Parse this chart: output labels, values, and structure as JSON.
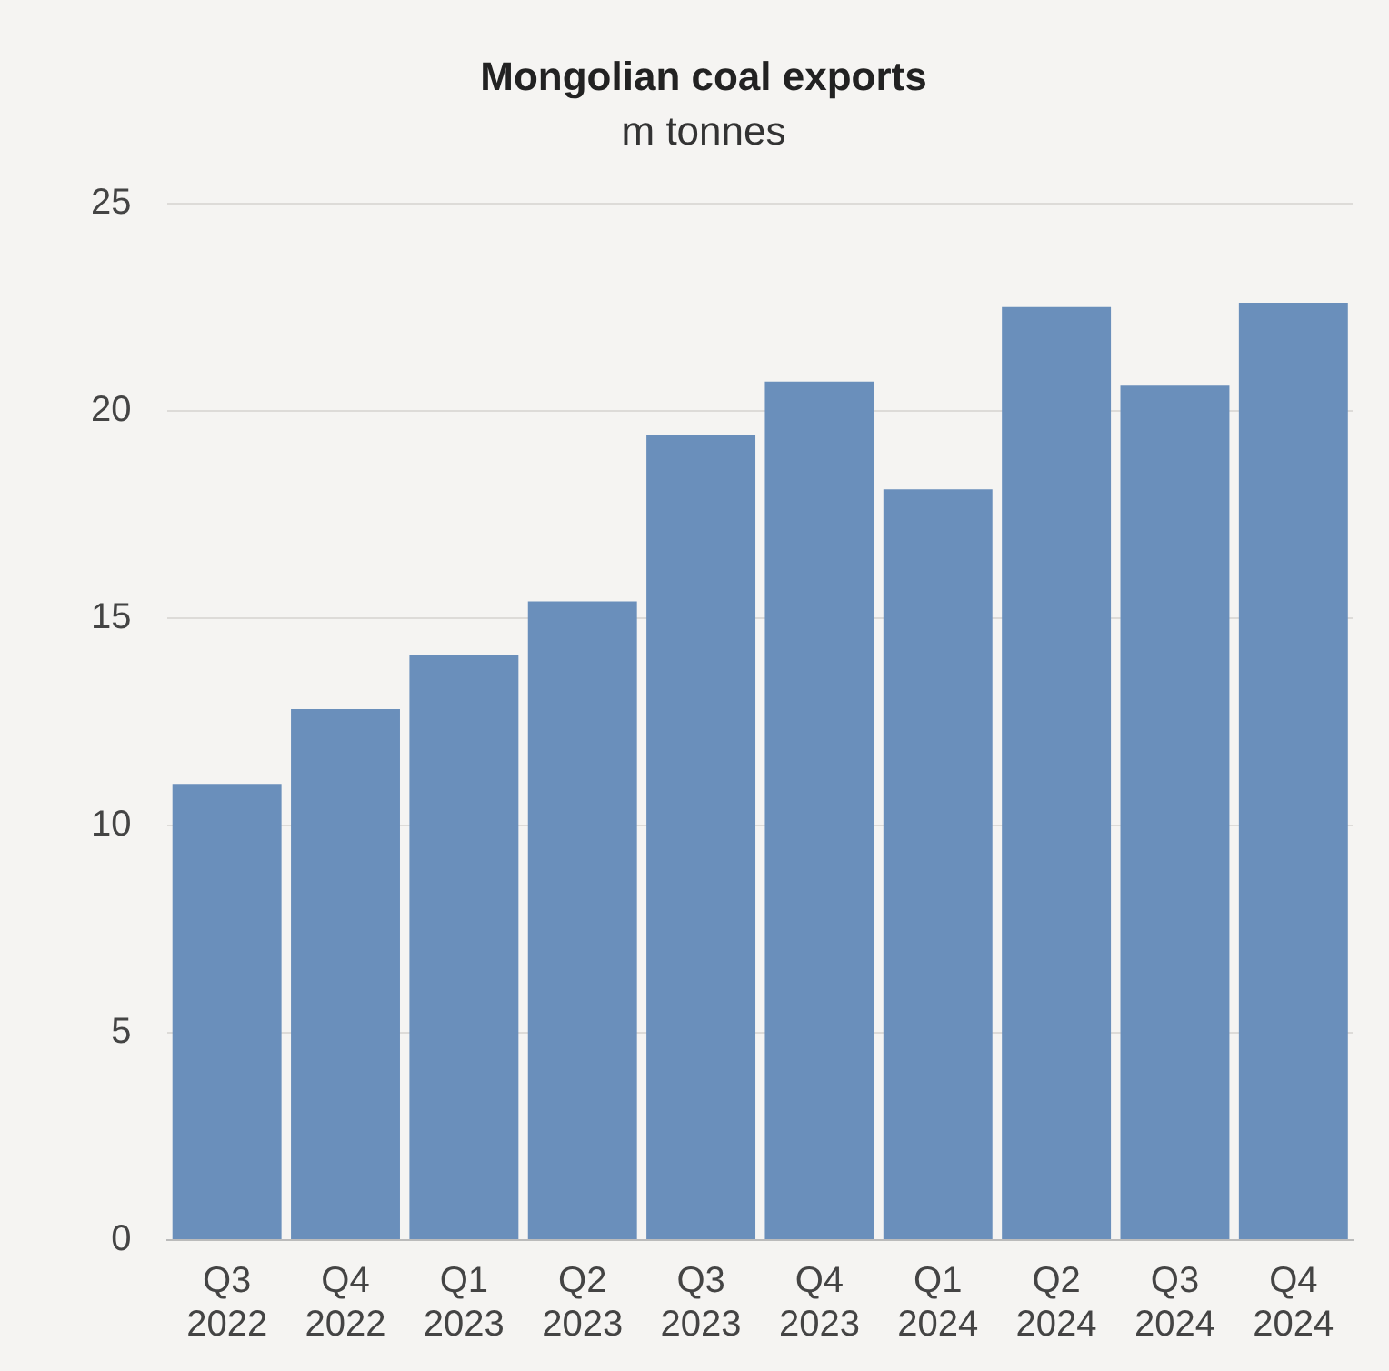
{
  "chart_data": {
    "type": "bar",
    "title": "Mongolian coal exports",
    "subtitle": "m tonnes",
    "categories": [
      "Q3 2022",
      "Q4 2022",
      "Q1 2023",
      "Q2 2023",
      "Q3 2023",
      "Q4 2023",
      "Q1 2024",
      "Q2 2024",
      "Q3 2024",
      "Q4 2024"
    ],
    "values": [
      11.0,
      12.8,
      14.1,
      15.4,
      19.4,
      20.7,
      18.1,
      22.5,
      20.6,
      22.6
    ],
    "color": "#6a8fbb",
    "ylim": [
      0,
      25
    ],
    "yticks": [
      0,
      5,
      10,
      15,
      20,
      25
    ],
    "grid": "y",
    "legend": false
  }
}
